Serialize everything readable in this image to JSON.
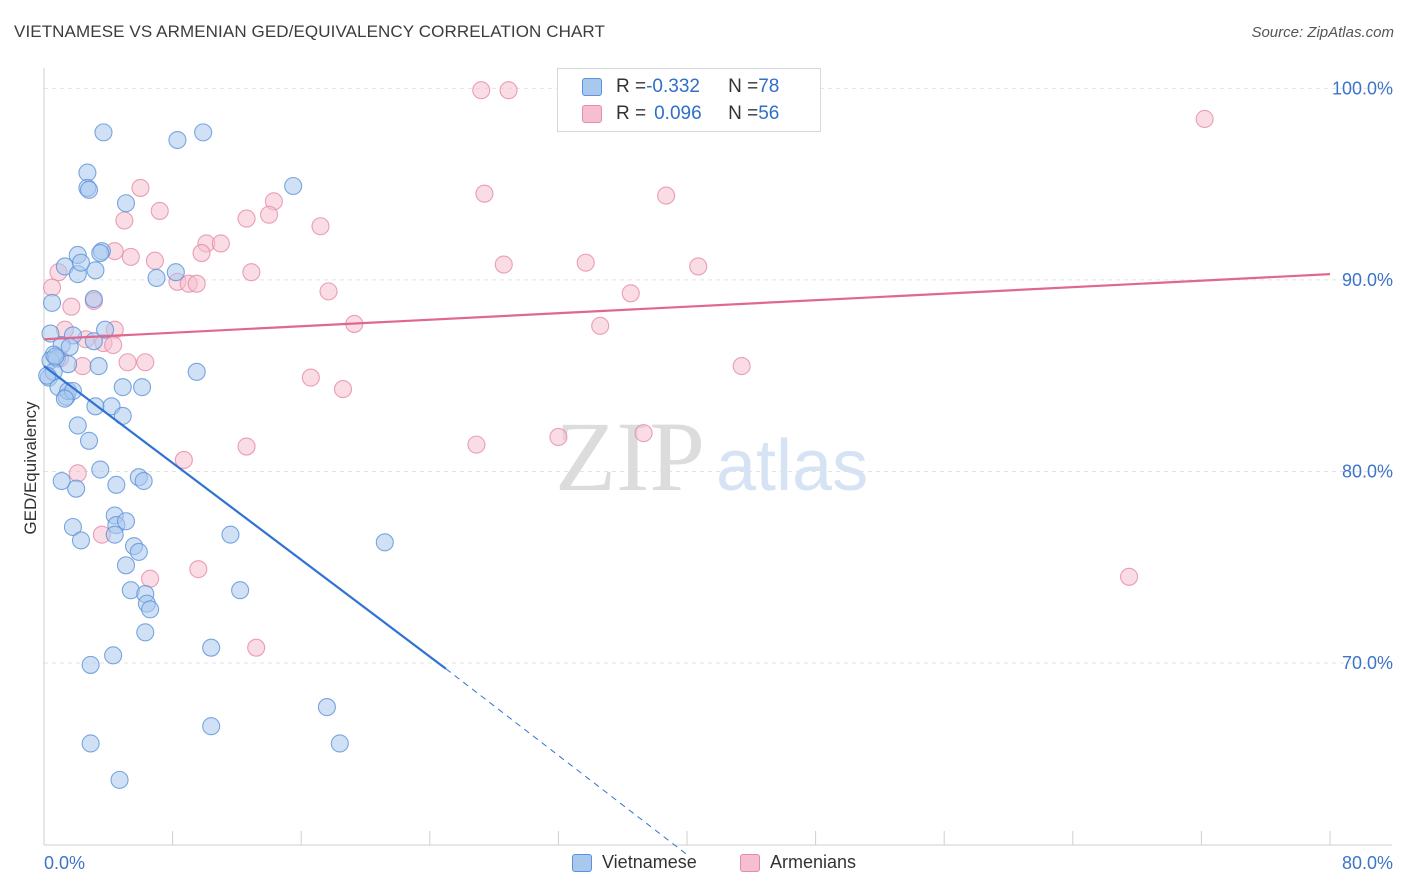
{
  "title": "VIETNAMESE VS ARMENIAN GED/EQUIVALENCY CORRELATION CHART",
  "source": "Source: ZipAtlas.com",
  "watermark": {
    "zip": "ZIP",
    "atlas": "atlas"
  },
  "legend": {
    "row1": {
      "r_label": "R = ",
      "r_value": "-0.332",
      "n_label": "N = ",
      "n_value": "78"
    },
    "row2": {
      "r_label": "R = ",
      "r_value": "0.096",
      "n_label": "N = ",
      "n_value": "56"
    }
  },
  "colors": {
    "blue_fill": "#a9c8ee",
    "blue_stroke": "#5b92d8",
    "blue_line": "#2f72d2",
    "pink_fill": "#f5bfd0",
    "pink_stroke": "#e58aa8",
    "pink_line": "#e0688f",
    "tick_label": "#3d74c8",
    "grid": "#e3e3e3"
  },
  "chart_data": {
    "type": "scatter",
    "title": "VIETNAMESE VS ARMENIAN GED/EQUIVALENCY CORRELATION CHART",
    "xlabel": "",
    "ylabel": "GED/Equivalency",
    "xlim": [
      0,
      80
    ],
    "ylim": [
      60.5,
      102
    ],
    "x_tick_labels": [
      "0.0%",
      "80.0%"
    ],
    "y_ticks": [
      70,
      80,
      90,
      100
    ],
    "y_tick_labels": [
      "70.0%",
      "80.0%",
      "90.0%",
      "100.0%"
    ],
    "grid": true,
    "series": [
      {
        "name": "Vietnamese",
        "r": -0.332,
        "n": 78,
        "trend": {
          "x0": 0,
          "y0": 85.5,
          "x1": 25,
          "y1": 69.7,
          "dash_to_x": 40,
          "dash_to_y": 60
        },
        "points": [
          [
            3.7,
            97.7
          ],
          [
            8.3,
            97.3
          ],
          [
            9.9,
            97.7
          ],
          [
            2.7,
            95.6
          ],
          [
            2.7,
            94.8
          ],
          [
            2.8,
            94.7
          ],
          [
            5.1,
            94.0
          ],
          [
            15.5,
            94.9
          ],
          [
            1.3,
            90.7
          ],
          [
            2.1,
            91.3
          ],
          [
            3.6,
            91.5
          ],
          [
            3.5,
            91.4
          ],
          [
            3.2,
            90.5
          ],
          [
            2.1,
            90.3
          ],
          [
            2.3,
            90.9
          ],
          [
            7.0,
            90.1
          ],
          [
            8.2,
            90.4
          ],
          [
            3.1,
            89.0
          ],
          [
            0.5,
            88.8
          ],
          [
            0.4,
            87.2
          ],
          [
            1.8,
            87.1
          ],
          [
            1.1,
            86.6
          ],
          [
            1.6,
            86.5
          ],
          [
            3.1,
            86.8
          ],
          [
            3.8,
            87.4
          ],
          [
            0.6,
            86.1
          ],
          [
            0.4,
            85.8
          ],
          [
            0.8,
            85.9
          ],
          [
            1.5,
            85.6
          ],
          [
            3.4,
            85.5
          ],
          [
            0.3,
            84.9
          ],
          [
            0.6,
            85.2
          ],
          [
            0.9,
            84.4
          ],
          [
            1.4,
            83.9
          ],
          [
            1.5,
            84.2
          ],
          [
            1.8,
            84.2
          ],
          [
            1.3,
            83.8
          ],
          [
            4.9,
            84.4
          ],
          [
            6.1,
            84.4
          ],
          [
            9.5,
            85.2
          ],
          [
            3.2,
            83.4
          ],
          [
            4.2,
            83.4
          ],
          [
            4.9,
            82.9
          ],
          [
            2.1,
            82.4
          ],
          [
            2.8,
            81.6
          ],
          [
            1.1,
            79.5
          ],
          [
            3.5,
            80.1
          ],
          [
            2.0,
            79.1
          ],
          [
            4.5,
            79.3
          ],
          [
            5.9,
            79.7
          ],
          [
            6.2,
            79.5
          ],
          [
            1.8,
            77.1
          ],
          [
            4.4,
            77.7
          ],
          [
            4.5,
            77.2
          ],
          [
            4.4,
            76.7
          ],
          [
            5.1,
            77.4
          ],
          [
            11.6,
            76.7
          ],
          [
            21.2,
            76.3
          ],
          [
            2.3,
            76.4
          ],
          [
            5.6,
            76.1
          ],
          [
            5.9,
            75.8
          ],
          [
            5.1,
            75.1
          ],
          [
            5.4,
            73.8
          ],
          [
            6.3,
            73.6
          ],
          [
            6.4,
            73.1
          ],
          [
            6.6,
            72.8
          ],
          [
            12.2,
            73.8
          ],
          [
            6.3,
            71.6
          ],
          [
            10.4,
            70.8
          ],
          [
            2.9,
            69.9
          ],
          [
            4.3,
            70.4
          ],
          [
            17.6,
            67.7
          ],
          [
            10.4,
            66.7
          ],
          [
            2.9,
            65.8
          ],
          [
            18.4,
            65.8
          ],
          [
            4.7,
            63.9
          ],
          [
            0.2,
            85.0
          ],
          [
            0.7,
            86.0
          ]
        ]
      },
      {
        "name": "Armenians",
        "r": 0.096,
        "n": 56,
        "trend": {
          "x0": 0,
          "y0": 86.9,
          "x1": 80,
          "y1": 90.3
        },
        "points": [
          [
            27.2,
            99.9
          ],
          [
            28.9,
            99.9
          ],
          [
            72.2,
            98.4
          ],
          [
            6.0,
            94.8
          ],
          [
            14.3,
            94.1
          ],
          [
            27.4,
            94.5
          ],
          [
            38.7,
            94.4
          ],
          [
            7.2,
            93.6
          ],
          [
            5.0,
            93.1
          ],
          [
            12.6,
            93.2
          ],
          [
            14.0,
            93.4
          ],
          [
            17.2,
            92.8
          ],
          [
            10.1,
            91.9
          ],
          [
            11.0,
            91.9
          ],
          [
            4.4,
            91.5
          ],
          [
            5.4,
            91.2
          ],
          [
            6.9,
            91.0
          ],
          [
            9.8,
            91.4
          ],
          [
            28.6,
            90.8
          ],
          [
            33.7,
            90.9
          ],
          [
            40.7,
            90.7
          ],
          [
            0.9,
            90.4
          ],
          [
            12.9,
            90.4
          ],
          [
            8.3,
            89.9
          ],
          [
            9.0,
            89.8
          ],
          [
            9.5,
            89.8
          ],
          [
            0.5,
            89.6
          ],
          [
            1.7,
            88.6
          ],
          [
            3.1,
            88.9
          ],
          [
            17.7,
            89.4
          ],
          [
            36.5,
            89.3
          ],
          [
            19.3,
            87.7
          ],
          [
            34.6,
            87.6
          ],
          [
            4.4,
            87.4
          ],
          [
            1.3,
            87.4
          ],
          [
            2.6,
            86.9
          ],
          [
            3.7,
            86.7
          ],
          [
            4.3,
            86.6
          ],
          [
            1.0,
            85.9
          ],
          [
            2.4,
            85.5
          ],
          [
            5.2,
            85.7
          ],
          [
            6.3,
            85.7
          ],
          [
            43.4,
            85.5
          ],
          [
            16.6,
            84.9
          ],
          [
            18.6,
            84.3
          ],
          [
            26.9,
            81.4
          ],
          [
            32.0,
            81.8
          ],
          [
            37.3,
            82.0
          ],
          [
            12.6,
            81.3
          ],
          [
            8.7,
            80.6
          ],
          [
            2.1,
            79.9
          ],
          [
            3.6,
            76.7
          ],
          [
            9.6,
            74.9
          ],
          [
            6.6,
            74.4
          ],
          [
            67.5,
            74.5
          ],
          [
            13.2,
            70.8
          ]
        ]
      }
    ]
  },
  "bottom_legend": {
    "vietnamese": "Vietnamese",
    "armenians": "Armenians"
  }
}
